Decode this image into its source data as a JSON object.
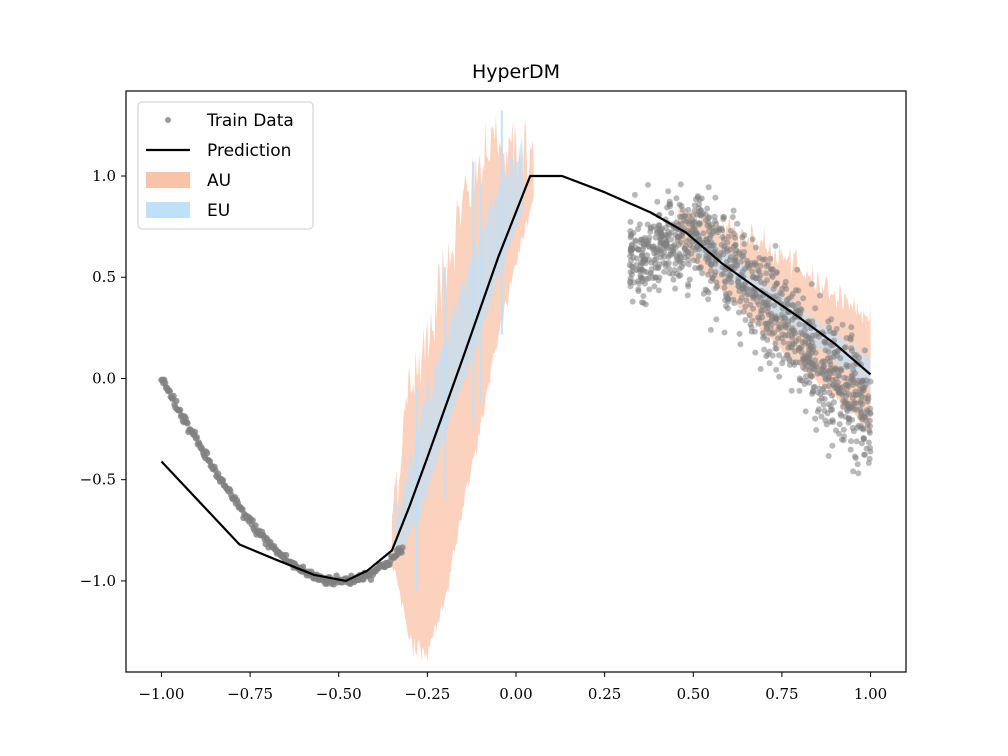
{
  "chart_data": {
    "type": "scatter",
    "title": "HyperDM",
    "xlabel": "",
    "ylabel": "",
    "xlim": [
      -1.1,
      1.1
    ],
    "ylim": [
      -1.45,
      1.42
    ],
    "xticks": [
      -1.0,
      -0.75,
      -0.5,
      -0.25,
      0.0,
      0.25,
      0.5,
      0.75,
      1.0
    ],
    "xtick_labels": [
      "−1.00",
      "−0.75",
      "−0.50",
      "−0.25",
      "0.00",
      "0.25",
      "0.50",
      "0.75",
      "1.00"
    ],
    "yticks": [
      -1.0,
      -0.5,
      0.0,
      0.5,
      1.0
    ],
    "ytick_labels": [
      "−1.0",
      "−0.5",
      "0.0",
      "0.5",
      "1.0"
    ],
    "grid": false,
    "legend": {
      "placement": "top-left",
      "entries": [
        {
          "label": "Train Data",
          "kind": "marker",
          "color": "#808080"
        },
        {
          "label": "Prediction",
          "kind": "line",
          "color": "#000000"
        },
        {
          "label": "AU",
          "kind": "patch",
          "color": "#f9c3a8"
        },
        {
          "label": "EU",
          "kind": "patch",
          "color": "#bfe0f7"
        }
      ]
    },
    "series": [
      {
        "name": "Train Data",
        "kind": "scatter",
        "color": "#808080",
        "segments": [
          {
            "x_range": [
              -1.0,
              -0.32
            ],
            "curve": "sin(pi*x)",
            "noise_sd": 0.012
          },
          {
            "x_range": [
              0.32,
              1.0
            ],
            "curve": "linear",
            "y_at_start": 0.58,
            "y_peak_x": 0.52,
            "y_peak": 0.72,
            "y_at_end": -0.2,
            "noise_sd": 0.12
          }
        ]
      },
      {
        "name": "Prediction",
        "kind": "line",
        "color": "#000000",
        "x": [
          -1.0,
          -0.78,
          -0.67,
          -0.57,
          -0.48,
          -0.42,
          -0.35,
          -0.3,
          -0.25,
          -0.15,
          -0.05,
          0.04,
          0.13,
          0.25,
          0.38,
          0.48,
          0.58,
          0.7,
          0.8,
          0.9,
          1.0
        ],
        "y": [
          -0.41,
          -0.82,
          -0.9,
          -0.97,
          -1.0,
          -0.95,
          -0.85,
          -0.63,
          -0.39,
          0.1,
          0.6,
          1.0,
          1.0,
          0.92,
          0.82,
          0.72,
          0.57,
          0.42,
          0.3,
          0.17,
          0.02
        ]
      },
      {
        "name": "AU",
        "kind": "band",
        "color": "#f9c3a8",
        "segments": [
          {
            "x": [
              -0.35,
              -0.3,
              -0.25,
              -0.2,
              -0.15,
              -0.1,
              -0.05,
              0.0,
              0.05
            ],
            "lower": [
              -0.87,
              -1.25,
              -1.33,
              -1.05,
              -0.6,
              -0.2,
              0.25,
              0.62,
              0.9
            ],
            "upper": [
              -0.65,
              -0.05,
              0.22,
              0.55,
              0.85,
              1.05,
              1.18,
              1.15,
              1.06
            ]
          },
          {
            "x": [
              0.45,
              0.55,
              0.65,
              0.75,
              0.85,
              0.95,
              1.0
            ],
            "lower": [
              0.7,
              0.5,
              0.33,
              0.15,
              0.0,
              -0.16,
              -0.25
            ],
            "upper": [
              0.82,
              0.78,
              0.7,
              0.6,
              0.48,
              0.36,
              0.3
            ]
          }
        ]
      },
      {
        "name": "EU",
        "kind": "band",
        "color": "#bfe0f7",
        "segments": [
          {
            "x": [
              -0.34,
              -0.28,
              -0.2,
              -0.12,
              -0.05,
              0.02
            ],
            "lower": [
              -0.85,
              -0.7,
              -0.25,
              0.12,
              0.52,
              0.85
            ],
            "upper": [
              -0.7,
              -0.3,
              0.2,
              0.62,
              0.95,
              1.12
            ]
          },
          {
            "x": [
              0.5,
              0.6,
              0.7,
              0.8,
              0.9,
              1.0
            ],
            "lower": [
              0.64,
              0.5,
              0.37,
              0.24,
              0.1,
              -0.04
            ],
            "upper": [
              0.74,
              0.62,
              0.48,
              0.35,
              0.22,
              0.08
            ]
          }
        ]
      }
    ]
  }
}
